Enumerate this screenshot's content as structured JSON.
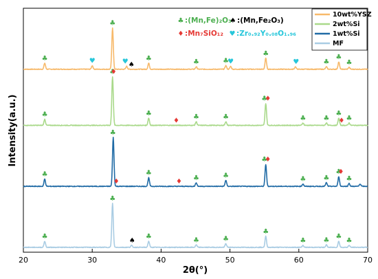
{
  "chart_data": {
    "type": "line",
    "xlabel": "2θ(°)",
    "ylabel": "Intensity(a.u.)",
    "xlim": [
      20,
      70
    ],
    "x_ticks": [
      20,
      30,
      40,
      50,
      60,
      70
    ],
    "grid": false,
    "legend_position": "top-right",
    "series": [
      {
        "name": "10wt%YSZ",
        "color": "#F7B96A",
        "baseline_level": 0.75,
        "peaks": [
          {
            "x": 23.1,
            "h": 0.025
          },
          {
            "x": 30.0,
            "h": 0.015
          },
          {
            "x": 32.95,
            "h": 0.17
          },
          {
            "x": 35.0,
            "h": 0.012
          },
          {
            "x": 38.2,
            "h": 0.025
          },
          {
            "x": 45.1,
            "h": 0.01
          },
          {
            "x": 49.4,
            "h": 0.015
          },
          {
            "x": 50.1,
            "h": 0.012
          },
          {
            "x": 55.2,
            "h": 0.045
          },
          {
            "x": 59.5,
            "h": 0.01
          },
          {
            "x": 64.0,
            "h": 0.01
          },
          {
            "x": 65.8,
            "h": 0.03
          },
          {
            "x": 67.3,
            "h": 0.008
          }
        ]
      },
      {
        "name": "2wt%Si",
        "color": "#A9D98A",
        "baseline_level": 0.52,
        "peaks": [
          {
            "x": 23.1,
            "h": 0.025
          },
          {
            "x": 32.95,
            "h": 0.2
          },
          {
            "x": 38.2,
            "h": 0.03
          },
          {
            "x": 45.1,
            "h": 0.015
          },
          {
            "x": 49.4,
            "h": 0.015
          },
          {
            "x": 55.2,
            "h": 0.09
          },
          {
            "x": 60.6,
            "h": 0.01
          },
          {
            "x": 64.0,
            "h": 0.01
          },
          {
            "x": 65.8,
            "h": 0.03
          },
          {
            "x": 67.3,
            "h": 0.01
          }
        ]
      },
      {
        "name": "1wt%Si",
        "color": "#1F6AA5",
        "baseline_level": 0.27,
        "peaks": [
          {
            "x": 23.1,
            "h": 0.03
          },
          {
            "x": 33.05,
            "h": 0.2
          },
          {
            "x": 38.2,
            "h": 0.035
          },
          {
            "x": 45.1,
            "h": 0.015
          },
          {
            "x": 49.4,
            "h": 0.025
          },
          {
            "x": 55.2,
            "h": 0.09
          },
          {
            "x": 60.6,
            "h": 0.01
          },
          {
            "x": 64.0,
            "h": 0.015
          },
          {
            "x": 65.8,
            "h": 0.04
          },
          {
            "x": 67.3,
            "h": 0.012
          },
          {
            "x": 68.9,
            "h": 0.01
          }
        ]
      },
      {
        "name": "MF",
        "color": "#A9CCE3",
        "baseline_level": 0.02,
        "peaks": [
          {
            "x": 23.1,
            "h": 0.025
          },
          {
            "x": 32.95,
            "h": 0.18
          },
          {
            "x": 35.7,
            "h": 0.008
          },
          {
            "x": 38.2,
            "h": 0.025
          },
          {
            "x": 45.1,
            "h": 0.01
          },
          {
            "x": 49.4,
            "h": 0.015
          },
          {
            "x": 55.2,
            "h": 0.045
          },
          {
            "x": 60.6,
            "h": 0.008
          },
          {
            "x": 64.0,
            "h": 0.01
          },
          {
            "x": 65.8,
            "h": 0.025
          },
          {
            "x": 67.3,
            "h": 0.008
          }
        ]
      }
    ],
    "phase_legend": [
      {
        "symbol": "♣",
        "color": "#4CAF50",
        "label": ":(Mn,Fe)₂O₃"
      },
      {
        "symbol": "♠",
        "color": "#000000",
        "label": ":(Mn,Fe₂O₃)"
      },
      {
        "symbol": "♦",
        "color": "#E53935",
        "label": ":Mn₇SiO₁₂"
      },
      {
        "symbol": "♥",
        "color": "#26C6DA",
        "label": ":Zr₀.₉₂Y₀.₀₈O₁.₉₆"
      }
    ],
    "markers": [
      {
        "series": "10wt%YSZ",
        "x": 23.1,
        "symbol": "♣",
        "color": "#4CAF50"
      },
      {
        "series": "10wt%YSZ",
        "x": 30.0,
        "symbol": "♥",
        "color": "#26C6DA"
      },
      {
        "series": "10wt%YSZ",
        "x": 32.95,
        "symbol": "♣",
        "color": "#4CAF50"
      },
      {
        "series": "10wt%YSZ",
        "x": 34.8,
        "symbol": "♥",
        "color": "#26C6DA"
      },
      {
        "series": "10wt%YSZ",
        "x": 35.7,
        "symbol": "♠",
        "color": "#000000"
      },
      {
        "series": "10wt%YSZ",
        "x": 38.2,
        "symbol": "♣",
        "color": "#4CAF50"
      },
      {
        "series": "10wt%YSZ",
        "x": 45.1,
        "symbol": "♣",
        "color": "#4CAF50"
      },
      {
        "series": "10wt%YSZ",
        "x": 49.4,
        "symbol": "♣",
        "color": "#4CAF50"
      },
      {
        "series": "10wt%YSZ",
        "x": 50.1,
        "symbol": "♥",
        "color": "#26C6DA"
      },
      {
        "series": "10wt%YSZ",
        "x": 55.2,
        "symbol": "♣",
        "color": "#4CAF50"
      },
      {
        "series": "10wt%YSZ",
        "x": 59.6,
        "symbol": "♥",
        "color": "#26C6DA"
      },
      {
        "series": "10wt%YSZ",
        "x": 64.0,
        "symbol": "♣",
        "color": "#4CAF50"
      },
      {
        "series": "10wt%YSZ",
        "x": 65.8,
        "symbol": "♣",
        "color": "#4CAF50"
      },
      {
        "series": "10wt%YSZ",
        "x": 67.3,
        "symbol": "♣",
        "color": "#4CAF50"
      },
      {
        "series": "2wt%Si",
        "x": 23.1,
        "symbol": "♣",
        "color": "#4CAF50"
      },
      {
        "series": "2wt%Si",
        "x": 32.95,
        "symbol": "♣",
        "color": "#4CAF50"
      },
      {
        "series": "2wt%Si",
        "x": 33.1,
        "symbol": "♦",
        "color": "#E53935"
      },
      {
        "series": "2wt%Si",
        "x": 38.2,
        "symbol": "♣",
        "color": "#4CAF50"
      },
      {
        "series": "2wt%Si",
        "x": 42.2,
        "symbol": "♦",
        "color": "#E53935"
      },
      {
        "series": "2wt%Si",
        "x": 45.1,
        "symbol": "♣",
        "color": "#4CAF50"
      },
      {
        "series": "2wt%Si",
        "x": 49.4,
        "symbol": "♣",
        "color": "#4CAF50"
      },
      {
        "series": "2wt%Si",
        "x": 55.0,
        "symbol": "♣",
        "color": "#4CAF50"
      },
      {
        "series": "2wt%Si",
        "x": 55.5,
        "symbol": "♦",
        "color": "#E53935"
      },
      {
        "series": "2wt%Si",
        "x": 60.6,
        "symbol": "♣",
        "color": "#4CAF50"
      },
      {
        "series": "2wt%Si",
        "x": 64.0,
        "symbol": "♣",
        "color": "#4CAF50"
      },
      {
        "series": "2wt%Si",
        "x": 65.8,
        "symbol": "♣",
        "color": "#4CAF50"
      },
      {
        "series": "2wt%Si",
        "x": 66.2,
        "symbol": "♦",
        "color": "#E53935"
      },
      {
        "series": "2wt%Si",
        "x": 67.3,
        "symbol": "♣",
        "color": "#4CAF50"
      },
      {
        "series": "1wt%Si",
        "x": 23.1,
        "symbol": "♣",
        "color": "#4CAF50"
      },
      {
        "series": "1wt%Si",
        "x": 33.0,
        "symbol": "♣",
        "color": "#4CAF50"
      },
      {
        "series": "1wt%Si",
        "x": 33.5,
        "symbol": "♦",
        "color": "#E53935"
      },
      {
        "series": "1wt%Si",
        "x": 38.2,
        "symbol": "♣",
        "color": "#4CAF50"
      },
      {
        "series": "1wt%Si",
        "x": 42.6,
        "symbol": "♦",
        "color": "#E53935"
      },
      {
        "series": "1wt%Si",
        "x": 45.1,
        "symbol": "♣",
        "color": "#4CAF50"
      },
      {
        "series": "1wt%Si",
        "x": 49.4,
        "symbol": "♣",
        "color": "#4CAF50"
      },
      {
        "series": "1wt%Si",
        "x": 55.0,
        "symbol": "♣",
        "color": "#4CAF50"
      },
      {
        "series": "1wt%Si",
        "x": 55.5,
        "symbol": "♦",
        "color": "#E53935"
      },
      {
        "series": "1wt%Si",
        "x": 60.6,
        "symbol": "♣",
        "color": "#4CAF50"
      },
      {
        "series": "1wt%Si",
        "x": 64.0,
        "symbol": "♣",
        "color": "#4CAF50"
      },
      {
        "series": "1wt%Si",
        "x": 65.8,
        "symbol": "♣",
        "color": "#4CAF50"
      },
      {
        "series": "1wt%Si",
        "x": 66.1,
        "symbol": "♦",
        "color": "#E53935"
      },
      {
        "series": "1wt%Si",
        "x": 67.3,
        "symbol": "♣",
        "color": "#4CAF50"
      },
      {
        "series": "MF",
        "x": 23.1,
        "symbol": "♣",
        "color": "#4CAF50"
      },
      {
        "series": "MF",
        "x": 32.95,
        "symbol": "♣",
        "color": "#4CAF50"
      },
      {
        "series": "MF",
        "x": 35.8,
        "symbol": "♠",
        "color": "#000000"
      },
      {
        "series": "MF",
        "x": 38.2,
        "symbol": "♣",
        "color": "#4CAF50"
      },
      {
        "series": "MF",
        "x": 45.1,
        "symbol": "♣",
        "color": "#4CAF50"
      },
      {
        "series": "MF",
        "x": 49.4,
        "symbol": "♣",
        "color": "#4CAF50"
      },
      {
        "series": "MF",
        "x": 55.2,
        "symbol": "♣",
        "color": "#4CAF50"
      },
      {
        "series": "MF",
        "x": 60.6,
        "symbol": "♣",
        "color": "#4CAF50"
      },
      {
        "series": "MF",
        "x": 64.0,
        "symbol": "♣",
        "color": "#4CAF50"
      },
      {
        "series": "MF",
        "x": 65.8,
        "symbol": "♣",
        "color": "#4CAF50"
      },
      {
        "series": "MF",
        "x": 67.3,
        "symbol": "♣",
        "color": "#4CAF50"
      }
    ]
  }
}
